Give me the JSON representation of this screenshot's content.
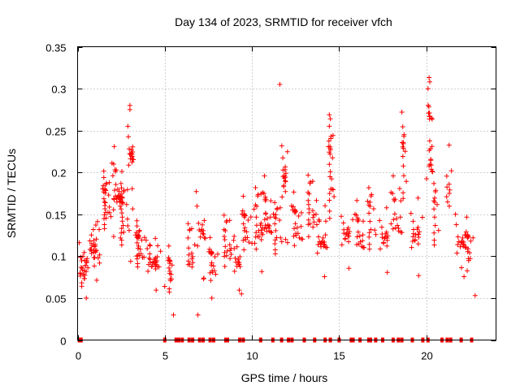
{
  "chart_data": {
    "type": "scatter",
    "title": "Day 134 of 2023, SRMTID for receiver vfch",
    "xlabel": "GPS time / hours",
    "ylabel": "SRMTID / TECUs",
    "xlim": [
      0,
      24
    ],
    "ylim": [
      0,
      0.35
    ],
    "xticks": [
      "0",
      "5",
      "10",
      "15",
      "20"
    ],
    "yticks": [
      "0",
      "0.05",
      "0.1",
      "0.15",
      "0.2",
      "0.25",
      "0.3",
      "0.35"
    ],
    "grid": true,
    "marker": "+",
    "color": "#ff0000",
    "clusters": [
      {
        "x": 0.3,
        "y": 0.085,
        "n": 28,
        "sx": 0.25,
        "sy": 0.018
      },
      {
        "x": 0.9,
        "y": 0.11,
        "n": 28,
        "sx": 0.3,
        "sy": 0.025
      },
      {
        "x": 1.6,
        "y": 0.155,
        "n": 30,
        "sx": 0.3,
        "sy": 0.025
      },
      {
        "x": 2.2,
        "y": 0.175,
        "n": 30,
        "sx": 0.3,
        "sy": 0.03
      },
      {
        "x": 2.6,
        "y": 0.14,
        "n": 25,
        "sx": 0.35,
        "sy": 0.03
      },
      {
        "x": 3.0,
        "y": 0.225,
        "n": 18,
        "sx": 0.15,
        "sy": 0.025
      },
      {
        "x": 3.5,
        "y": 0.105,
        "n": 30,
        "sx": 0.3,
        "sy": 0.02
      },
      {
        "x": 4.2,
        "y": 0.095,
        "n": 30,
        "sx": 0.35,
        "sy": 0.02
      },
      {
        "x": 5.3,
        "y": 0.075,
        "n": 18,
        "sx": 0.2,
        "sy": 0.02
      },
      {
        "x": 6.4,
        "y": 0.1,
        "n": 16,
        "sx": 0.2,
        "sy": 0.025
      },
      {
        "x": 7.0,
        "y": 0.135,
        "n": 16,
        "sx": 0.25,
        "sy": 0.035
      },
      {
        "x": 7.7,
        "y": 0.085,
        "n": 20,
        "sx": 0.3,
        "sy": 0.02
      },
      {
        "x": 8.5,
        "y": 0.11,
        "n": 20,
        "sx": 0.3,
        "sy": 0.025
      },
      {
        "x": 9.1,
        "y": 0.095,
        "n": 14,
        "sx": 0.2,
        "sy": 0.02
      },
      {
        "x": 9.6,
        "y": 0.125,
        "n": 22,
        "sx": 0.3,
        "sy": 0.025
      },
      {
        "x": 10.3,
        "y": 0.135,
        "n": 24,
        "sx": 0.3,
        "sy": 0.03
      },
      {
        "x": 10.8,
        "y": 0.14,
        "n": 24,
        "sx": 0.25,
        "sy": 0.03
      },
      {
        "x": 11.4,
        "y": 0.125,
        "n": 18,
        "sx": 0.3,
        "sy": 0.025
      },
      {
        "x": 11.8,
        "y": 0.2,
        "n": 18,
        "sx": 0.15,
        "sy": 0.045
      },
      {
        "x": 12.5,
        "y": 0.13,
        "n": 24,
        "sx": 0.3,
        "sy": 0.025
      },
      {
        "x": 13.3,
        "y": 0.15,
        "n": 20,
        "sx": 0.25,
        "sy": 0.03
      },
      {
        "x": 13.9,
        "y": 0.12,
        "n": 22,
        "sx": 0.3,
        "sy": 0.025
      },
      {
        "x": 14.5,
        "y": 0.185,
        "n": 26,
        "sx": 0.2,
        "sy": 0.045
      },
      {
        "x": 15.3,
        "y": 0.13,
        "n": 18,
        "sx": 0.3,
        "sy": 0.025
      },
      {
        "x": 16.1,
        "y": 0.12,
        "n": 18,
        "sx": 0.25,
        "sy": 0.025
      },
      {
        "x": 16.8,
        "y": 0.135,
        "n": 18,
        "sx": 0.3,
        "sy": 0.03
      },
      {
        "x": 17.5,
        "y": 0.125,
        "n": 18,
        "sx": 0.3,
        "sy": 0.025
      },
      {
        "x": 18.2,
        "y": 0.14,
        "n": 18,
        "sx": 0.3,
        "sy": 0.03
      },
      {
        "x": 18.7,
        "y": 0.2,
        "n": 16,
        "sx": 0.15,
        "sy": 0.035
      },
      {
        "x": 19.3,
        "y": 0.13,
        "n": 20,
        "sx": 0.3,
        "sy": 0.03
      },
      {
        "x": 20.2,
        "y": 0.22,
        "n": 22,
        "sx": 0.12,
        "sy": 0.05
      },
      {
        "x": 20.5,
        "y": 0.14,
        "n": 14,
        "sx": 0.2,
        "sy": 0.03
      },
      {
        "x": 21.2,
        "y": 0.18,
        "n": 10,
        "sx": 0.15,
        "sy": 0.04
      },
      {
        "x": 21.9,
        "y": 0.12,
        "n": 18,
        "sx": 0.3,
        "sy": 0.025
      },
      {
        "x": 22.4,
        "y": 0.1,
        "n": 18,
        "sx": 0.25,
        "sy": 0.025
      }
    ],
    "extra_points": [
      {
        "x": 11.6,
        "y": 0.305
      },
      {
        "x": 20.2,
        "y": 0.308
      },
      {
        "x": 20.1,
        "y": 0.3
      },
      {
        "x": 20.3,
        "y": 0.265
      },
      {
        "x": 3.0,
        "y": 0.28
      },
      {
        "x": 3.0,
        "y": 0.275
      },
      {
        "x": 18.6,
        "y": 0.272
      },
      {
        "x": 14.5,
        "y": 0.264
      },
      {
        "x": 5.5,
        "y": 0.03
      },
      {
        "x": 6.9,
        "y": 0.03
      },
      {
        "x": 0.5,
        "y": 0.05
      },
      {
        "x": 7.7,
        "y": 0.05
      },
      {
        "x": 9.4,
        "y": 0.055
      },
      {
        "x": 22.8,
        "y": 0.053
      }
    ],
    "zero_points_x": [
      0.1,
      0.15,
      0.2,
      5.0,
      5.65,
      5.8,
      6.0,
      6.4,
      6.6,
      7.0,
      7.2,
      7.6,
      7.8,
      8.5,
      8.6,
      9.3,
      9.5,
      10.5,
      11.2,
      11.7,
      12.1,
      12.3,
      13.0,
      13.6,
      14.2,
      14.5,
      15.0,
      15.7,
      15.8,
      16.2,
      16.7,
      16.8,
      17.1,
      17.5,
      18.1,
      18.4,
      18.6,
      19.2,
      19.8,
      20.1,
      20.9,
      21.2,
      21.4,
      22.0,
      22.6
    ]
  }
}
